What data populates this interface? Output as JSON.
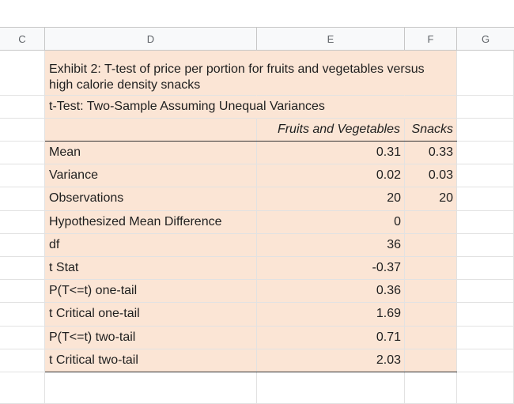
{
  "columns": [
    "C",
    "D",
    "E",
    "F",
    "G"
  ],
  "title": "Exhibit 2: T-test of price per portion for fruits and vegetables versus high calorie density snacks",
  "subtitle": "t-Test: Two-Sample Assuming Unequal Variances",
  "headers": [
    "Fruits and Vegetables",
    "Snacks"
  ],
  "rows": [
    {
      "label": "Mean",
      "e": "0.31",
      "f": "0.33"
    },
    {
      "label": "Variance",
      "e": "0.02",
      "f": "0.03"
    },
    {
      "label": "Observations",
      "e": "20",
      "f": "20"
    },
    {
      "label": "Hypothesized Mean Difference",
      "e": "0",
      "f": ""
    },
    {
      "label": "df",
      "e": "36",
      "f": ""
    },
    {
      "label": "t Stat",
      "e": "-0.37",
      "f": ""
    },
    {
      "label": "P(T<=t) one-tail",
      "e": "0.36",
      "f": ""
    },
    {
      "label": "t Critical one-tail",
      "e": "1.69",
      "f": ""
    },
    {
      "label": "P(T<=t) two-tail",
      "e": "0.71",
      "f": ""
    },
    {
      "label": "t Critical two-tail",
      "e": "2.03",
      "f": ""
    }
  ],
  "colors": {
    "table_fill": "#fbe5d5",
    "grid": "#e2e2e2",
    "header_bg": "#f8f9fa"
  }
}
